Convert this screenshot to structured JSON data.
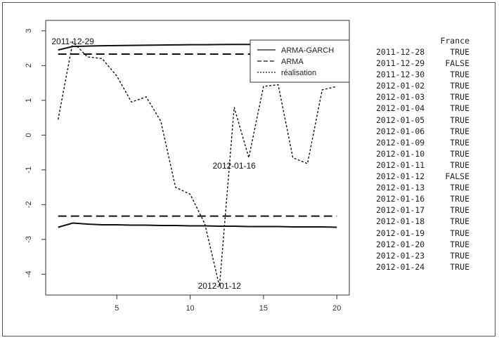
{
  "chart_data": {
    "type": "line",
    "x": [
      1,
      2,
      3,
      4,
      5,
      6,
      7,
      8,
      9,
      10,
      11,
      12,
      13,
      14,
      15,
      16,
      17,
      18,
      19,
      20
    ],
    "xticks": [
      5,
      10,
      15,
      20
    ],
    "yticks": [
      -4,
      -3,
      -2,
      -1,
      0,
      1,
      2,
      3
    ],
    "xlim": [
      0.15,
      20.85
    ],
    "ylim": [
      -4.6,
      3.3
    ],
    "series": [
      {
        "name": "ARMA-GARCH",
        "style": "solid",
        "upper": [
          2.45,
          2.55,
          2.56,
          2.57,
          2.575,
          2.58,
          2.585,
          2.59,
          2.595,
          2.6,
          2.6,
          2.605,
          2.61,
          2.61,
          2.615,
          2.615,
          2.62,
          2.62,
          2.625,
          2.63
        ],
        "lower": [
          -2.65,
          -2.53,
          -2.56,
          -2.58,
          -2.58,
          -2.59,
          -2.59,
          -2.6,
          -2.6,
          -2.61,
          -2.61,
          -2.62,
          -2.62,
          -2.63,
          -2.63,
          -2.63,
          -2.64,
          -2.64,
          -2.64,
          -2.65
        ]
      },
      {
        "name": "ARMA",
        "style": "dashed",
        "upper": [
          2.33,
          2.33,
          2.33,
          2.33,
          2.33,
          2.33,
          2.33,
          2.33,
          2.33,
          2.33,
          2.33,
          2.33,
          2.33,
          2.33,
          2.33,
          2.33,
          2.33,
          2.33,
          2.33,
          2.33
        ],
        "lower": [
          -2.33,
          -2.33,
          -2.33,
          -2.33,
          -2.33,
          -2.33,
          -2.33,
          -2.33,
          -2.33,
          -2.33,
          -2.33,
          -2.33,
          -2.33,
          -2.33,
          -2.33,
          -2.33,
          -2.33,
          -2.33,
          -2.33,
          -2.33
        ]
      },
      {
        "name": "réalisation",
        "style": "dotted",
        "values": [
          0.45,
          2.68,
          2.25,
          2.2,
          1.7,
          0.95,
          1.1,
          0.4,
          -1.5,
          -1.7,
          -2.55,
          -4.35,
          0.8,
          -0.65,
          1.4,
          1.45,
          -0.65,
          -0.82,
          1.3,
          1.4
        ]
      }
    ],
    "annotations": [
      {
        "text": "2011-12-29",
        "x": 2,
        "y": 2.68
      },
      {
        "text": "2012-01-16",
        "x": 13,
        "y": -0.9
      },
      {
        "text": "2012-01-12",
        "x": 12,
        "y": -4.35
      }
    ],
    "legend": "top-right",
    "grid": false
  },
  "table": {
    "header": "France",
    "rows": [
      {
        "date": "2011-12-28",
        "value": "TRUE"
      },
      {
        "date": "2011-12-29",
        "value": "FALSE"
      },
      {
        "date": "2011-12-30",
        "value": "TRUE"
      },
      {
        "date": "2012-01-02",
        "value": "TRUE"
      },
      {
        "date": "2012-01-03",
        "value": "TRUE"
      },
      {
        "date": "2012-01-04",
        "value": "TRUE"
      },
      {
        "date": "2012-01-05",
        "value": "TRUE"
      },
      {
        "date": "2012-01-06",
        "value": "TRUE"
      },
      {
        "date": "2012-01-09",
        "value": "TRUE"
      },
      {
        "date": "2012-01-10",
        "value": "TRUE"
      },
      {
        "date": "2012-01-11",
        "value": "TRUE"
      },
      {
        "date": "2012-01-12",
        "value": "FALSE"
      },
      {
        "date": "2012-01-13",
        "value": "TRUE"
      },
      {
        "date": "2012-01-16",
        "value": "TRUE"
      },
      {
        "date": "2012-01-17",
        "value": "TRUE"
      },
      {
        "date": "2012-01-18",
        "value": "TRUE"
      },
      {
        "date": "2012-01-19",
        "value": "TRUE"
      },
      {
        "date": "2012-01-20",
        "value": "TRUE"
      },
      {
        "date": "2012-01-23",
        "value": "TRUE"
      },
      {
        "date": "2012-01-24",
        "value": "TRUE"
      }
    ]
  }
}
